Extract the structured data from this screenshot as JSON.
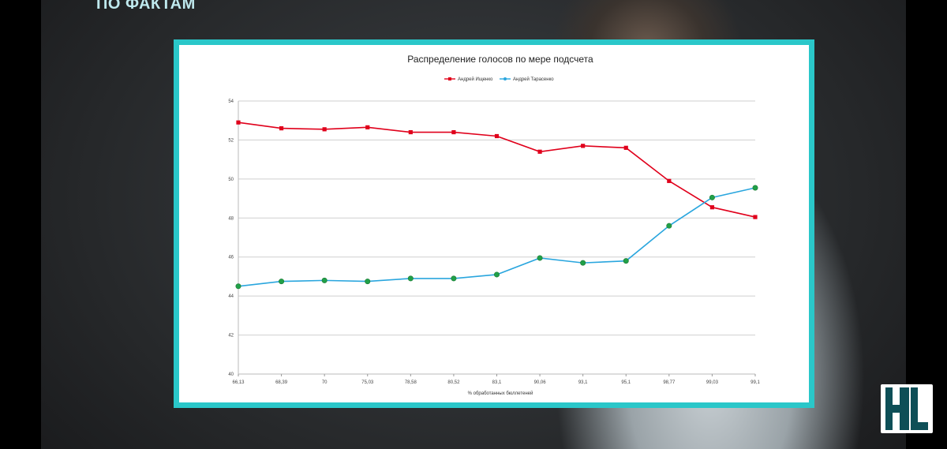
{
  "brand": {
    "text": "ПО ФАКТАМ"
  },
  "colors": {
    "frame": "#2ac7c9",
    "series_1": "#e0001b",
    "series_2": "#2aa6de",
    "markers_2": "#21a048",
    "logo": "#0e4f57"
  },
  "chart_data": {
    "type": "line",
    "title": "Распределение голосов по мере подсчета",
    "xlabel": "% обработанных бюллетеней",
    "ylabel": "",
    "x": [
      "66,13",
      "68,39",
      "70",
      "75,03",
      "78,58",
      "80,52",
      "83,1",
      "90,06",
      "93,1",
      "95,1",
      "98,77",
      "99,03",
      "99,1"
    ],
    "ylim": [
      40,
      54
    ],
    "yticks": [
      "40",
      "42",
      "44",
      "46",
      "48",
      "50",
      "52",
      "54"
    ],
    "grid": true,
    "legend": "top-center",
    "series": [
      {
        "name": "Андрей Ищенко",
        "values": [
          52.9,
          52.6,
          52.55,
          52.65,
          52.4,
          52.4,
          52.2,
          51.4,
          51.7,
          51.6,
          49.9,
          48.55,
          48.05
        ]
      },
      {
        "name": "Андрей Тарасенко",
        "values": [
          44.5,
          44.75,
          44.8,
          44.75,
          44.9,
          44.9,
          45.1,
          45.95,
          45.7,
          45.8,
          47.6,
          49.05,
          49.55
        ]
      }
    ]
  },
  "logo": {
    "label": "HL"
  }
}
